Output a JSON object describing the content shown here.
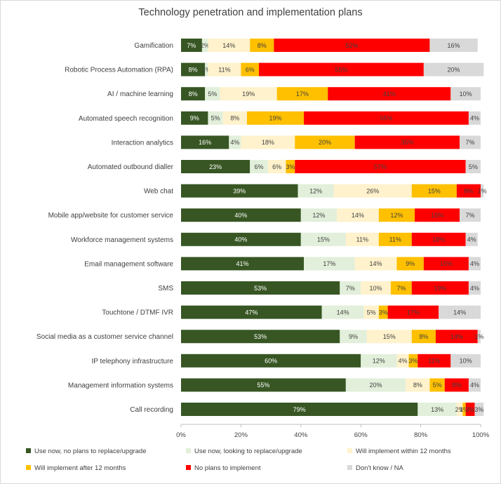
{
  "chart_data": {
    "type": "bar",
    "orientation": "horizontal",
    "stacked": true,
    "title": "Technology penetration and implementation plans",
    "xlim": [
      0,
      100
    ],
    "x_ticks": [
      "0%",
      "20%",
      "40%",
      "60%",
      "80%",
      "100%"
    ],
    "grid": false,
    "legend_position": "bottom",
    "categories": [
      "Gamification",
      "Robotic Process Automation (RPA)",
      "AI / machine learning",
      "Automated speech recognition",
      "Interaction analytics",
      "Automated outbound dialler",
      "Web chat",
      "Mobile app/website for customer service",
      "Workforce management systems",
      "Email management software",
      "SMS",
      "Touchtone / DTMF IVR",
      "Social media as a customer service channel",
      "IP telephony infrastructure",
      "Management information systems",
      "Call recording"
    ],
    "series": [
      {
        "name": "Use now, no plans to replace/upgrade",
        "color": "#375623",
        "label_color": "#ffffff",
        "values": [
          7,
          8,
          8,
          9,
          16,
          23,
          39,
          40,
          40,
          41,
          53,
          47,
          53,
          60,
          55,
          79
        ]
      },
      {
        "name": "Use now, looking to replace/upgrade",
        "color": "#e2efda",
        "label_color": "#404040",
        "values": [
          2,
          1,
          5,
          5,
          4,
          6,
          12,
          12,
          15,
          17,
          7,
          14,
          9,
          12,
          20,
          13
        ]
      },
      {
        "name": "Will implement within 12 months",
        "color": "#fff2cc",
        "label_color": "#404040",
        "values": [
          14,
          11,
          19,
          8,
          18,
          6,
          26,
          14,
          11,
          14,
          10,
          5,
          15,
          4,
          8,
          2
        ]
      },
      {
        "name": "Will implement after 12 months",
        "color": "#ffc000",
        "label_color": "#404040",
        "values": [
          8,
          6,
          17,
          19,
          20,
          3,
          15,
          12,
          11,
          9,
          7,
          3,
          8,
          3,
          5,
          1
        ]
      },
      {
        "name": "No plans to implement",
        "color": "#ff0000",
        "label_color": "#404040",
        "values": [
          52,
          55,
          41,
          55,
          35,
          57,
          8,
          15,
          18,
          15,
          19,
          17,
          14,
          11,
          8,
          3
        ]
      },
      {
        "name": "Don't know / NA",
        "color": "#d9d9d9",
        "label_color": "#404040",
        "values": [
          16,
          20,
          10,
          4,
          7,
          5,
          1,
          7,
          4,
          4,
          4,
          14,
          1,
          10,
          4,
          3
        ]
      }
    ]
  }
}
